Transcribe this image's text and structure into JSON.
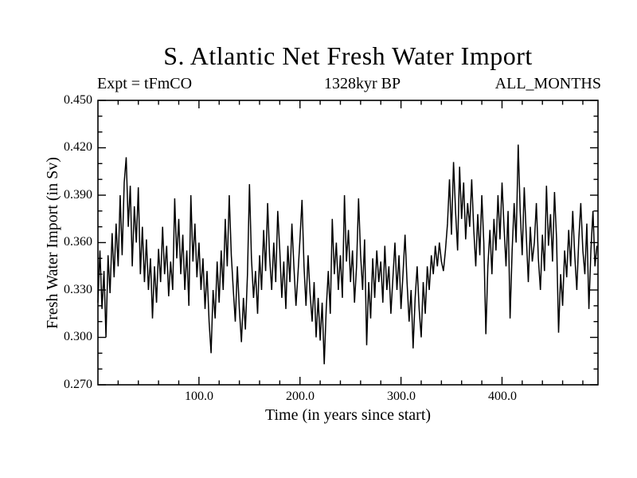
{
  "header": {
    "title": "S. Atlantic Net Fresh Water Import",
    "experiment_label": "Expt = tFmCO",
    "time_label": "1328kyr BP",
    "months_label": "ALL_MONTHS"
  },
  "axes": {
    "x": {
      "label": "Time (in years since start)",
      "min": 0,
      "max": 495,
      "major_ticks": [
        100,
        200,
        300,
        400
      ],
      "major_tick_labels": [
        "100.0",
        "200.0",
        "300.0",
        "400.0"
      ],
      "minor_step": 20
    },
    "y": {
      "label": "Fresh Water Import (in Sv)",
      "min": 0.27,
      "max": 0.45,
      "major_ticks": [
        0.27,
        0.3,
        0.33,
        0.36,
        0.39,
        0.42,
        0.45
      ],
      "major_tick_labels": [
        "0.450",
        "0.420",
        "0.390",
        "0.360",
        "0.330",
        "0.300",
        "0.270"
      ],
      "minor_step": 0.01
    }
  },
  "colors": {
    "line": "#000000",
    "axis": "#000000",
    "background": "#ffffff"
  },
  "chart_data": {
    "type": "line",
    "title": "S. Atlantic Net Fresh Water Import",
    "xlabel": "Time (in years since start)",
    "ylabel": "Fresh Water Import (in Sv)",
    "xlim": [
      0,
      495
    ],
    "ylim": [
      0.27,
      0.45
    ],
    "grid": false,
    "legend": false,
    "x_start": 0,
    "x_step": 2,
    "values": [
      0.322,
      0.355,
      0.318,
      0.342,
      0.3,
      0.352,
      0.328,
      0.366,
      0.338,
      0.372,
      0.345,
      0.39,
      0.352,
      0.398,
      0.414,
      0.37,
      0.396,
      0.345,
      0.383,
      0.36,
      0.395,
      0.34,
      0.37,
      0.335,
      0.362,
      0.33,
      0.35,
      0.312,
      0.345,
      0.322,
      0.356,
      0.335,
      0.37,
      0.34,
      0.358,
      0.326,
      0.348,
      0.33,
      0.388,
      0.35,
      0.375,
      0.34,
      0.365,
      0.33,
      0.355,
      0.32,
      0.39,
      0.348,
      0.372,
      0.338,
      0.36,
      0.33,
      0.35,
      0.318,
      0.342,
      0.31,
      0.29,
      0.33,
      0.312,
      0.348,
      0.322,
      0.355,
      0.33,
      0.375,
      0.345,
      0.39,
      0.352,
      0.33,
      0.31,
      0.345,
      0.318,
      0.297,
      0.325,
      0.305,
      0.34,
      0.397,
      0.35,
      0.325,
      0.342,
      0.315,
      0.352,
      0.33,
      0.368,
      0.342,
      0.385,
      0.35,
      0.33,
      0.36,
      0.335,
      0.38,
      0.355,
      0.325,
      0.348,
      0.318,
      0.358,
      0.335,
      0.372,
      0.345,
      0.32,
      0.34,
      0.362,
      0.387,
      0.345,
      0.32,
      0.352,
      0.328,
      0.31,
      0.335,
      0.3,
      0.325,
      0.298,
      0.322,
      0.283,
      0.318,
      0.342,
      0.315,
      0.375,
      0.34,
      0.36,
      0.33,
      0.352,
      0.325,
      0.39,
      0.348,
      0.368,
      0.335,
      0.355,
      0.322,
      0.345,
      0.388,
      0.352,
      0.33,
      0.362,
      0.295,
      0.335,
      0.312,
      0.35,
      0.325,
      0.355,
      0.335,
      0.348,
      0.322,
      0.358,
      0.33,
      0.345,
      0.315,
      0.338,
      0.36,
      0.33,
      0.352,
      0.318,
      0.34,
      0.365,
      0.335,
      0.31,
      0.33,
      0.293,
      0.325,
      0.345,
      0.318,
      0.3,
      0.335,
      0.315,
      0.345,
      0.33,
      0.352,
      0.34,
      0.358,
      0.345,
      0.36,
      0.348,
      0.342,
      0.355,
      0.372,
      0.4,
      0.365,
      0.411,
      0.38,
      0.355,
      0.408,
      0.375,
      0.398,
      0.362,
      0.385,
      0.37,
      0.4,
      0.368,
      0.345,
      0.378,
      0.352,
      0.39,
      0.36,
      0.302,
      0.345,
      0.368,
      0.34,
      0.375,
      0.355,
      0.39,
      0.362,
      0.398,
      0.37,
      0.345,
      0.38,
      0.312,
      0.355,
      0.385,
      0.36,
      0.422,
      0.38,
      0.352,
      0.395,
      0.365,
      0.335,
      0.37,
      0.348,
      0.36,
      0.385,
      0.35,
      0.33,
      0.365,
      0.342,
      0.396,
      0.358,
      0.378,
      0.348,
      0.392,
      0.362,
      0.303,
      0.34,
      0.32,
      0.355,
      0.338,
      0.368,
      0.345,
      0.38,
      0.352,
      0.33,
      0.362,
      0.385,
      0.355,
      0.34,
      0.372,
      0.318,
      0.355,
      0.38,
      0.345,
      0.358
    ]
  }
}
